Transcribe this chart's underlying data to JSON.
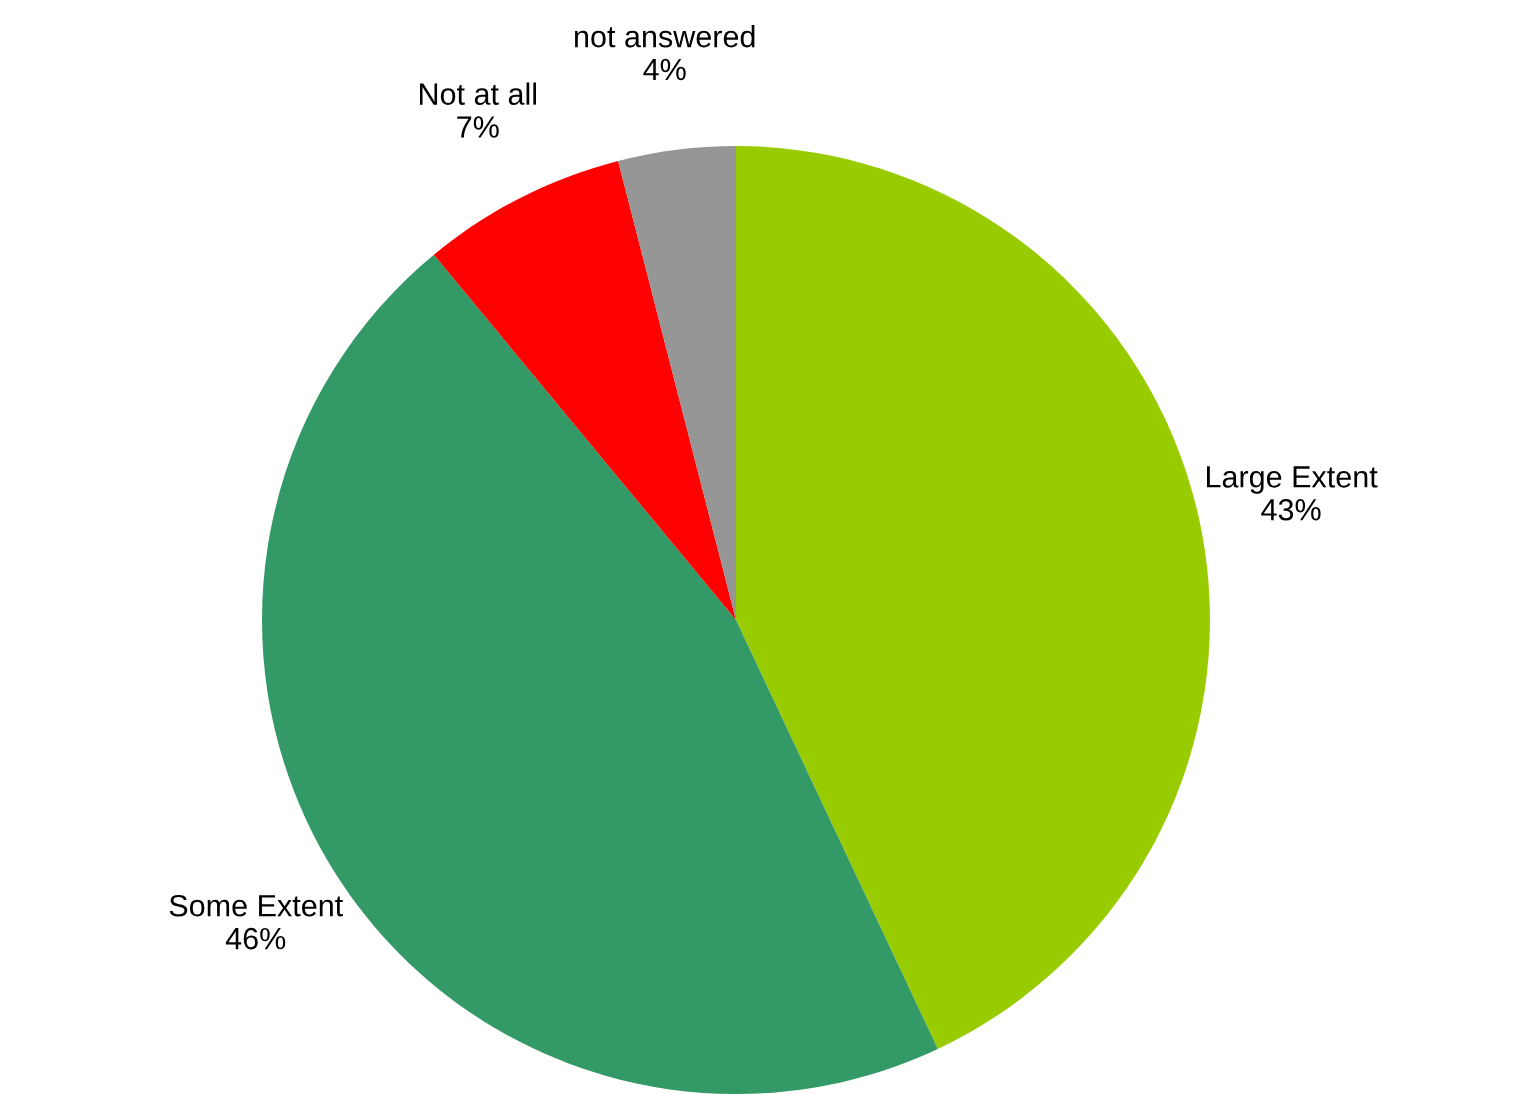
{
  "chart_data": {
    "type": "pie",
    "categories": [
      "Large Extent",
      "Some Extent",
      "Not at all",
      "not answered"
    ],
    "values": [
      43,
      46,
      7,
      4
    ],
    "colors": [
      "#99cc00",
      "#339966",
      "#ff0000",
      "#969696"
    ],
    "value_labels": [
      "43%",
      "46%",
      "7%",
      "4%"
    ],
    "legend": false
  }
}
